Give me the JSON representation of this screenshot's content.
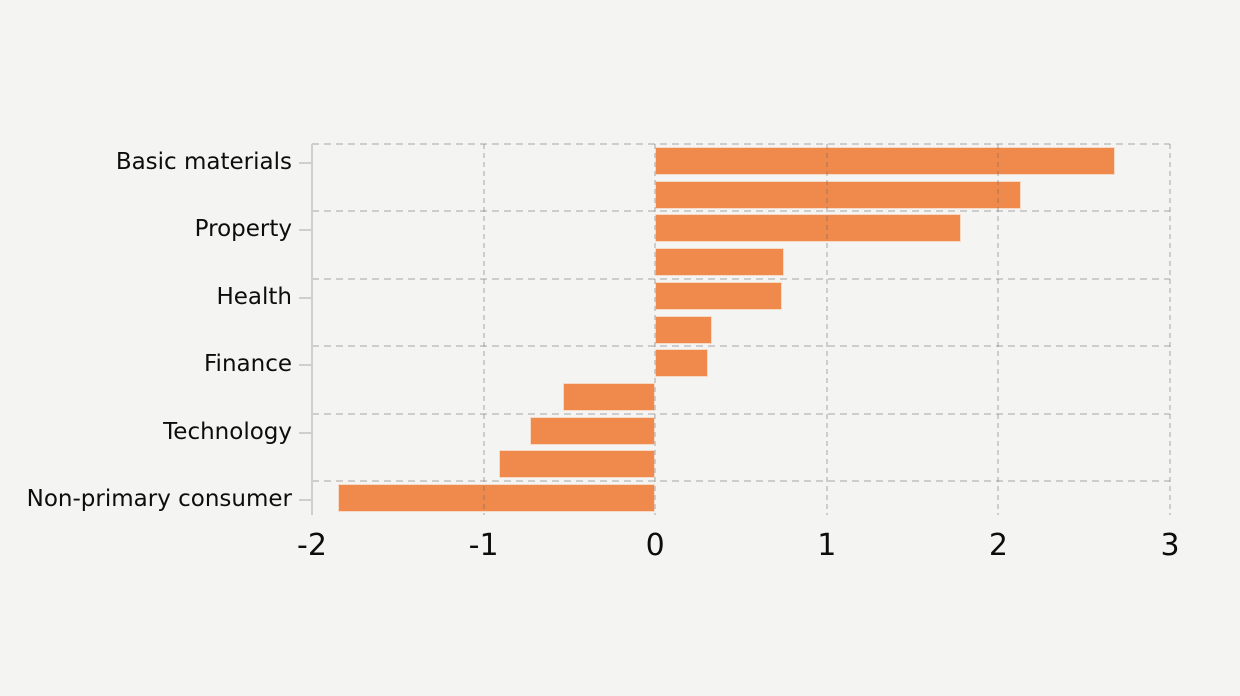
{
  "chart_data": {
    "type": "bar",
    "orientation": "horizontal",
    "title": "",
    "xlabel": "",
    "ylabel": "",
    "categories": [
      "Basic materials",
      "",
      "Property",
      "",
      "Health",
      "",
      "Finance",
      "",
      "Technology",
      "",
      "Non-primary consumer"
    ],
    "values": [
      2.68,
      2.13,
      1.78,
      0.75,
      0.74,
      0.33,
      0.31,
      -0.54,
      -0.73,
      -0.91,
      -1.85
    ],
    "x_tick_labels": [
      "-2",
      "-1",
      "0",
      "1",
      "2",
      "3"
    ],
    "x_tick_values": [
      -2,
      -1,
      0,
      1,
      2,
      3
    ],
    "xlim": [
      -2,
      3
    ],
    "grid": "dashed vertical gridlines at every x tick, dashed horizontal gridlines above each labeled category, drawn over bars",
    "legend": "none",
    "colors": {
      "bar": "#f0894c",
      "background": "#f4f4f2",
      "gridline": "#6b6966",
      "axis": "#d0cfcd",
      "text": "#0d0d0d"
    }
  }
}
